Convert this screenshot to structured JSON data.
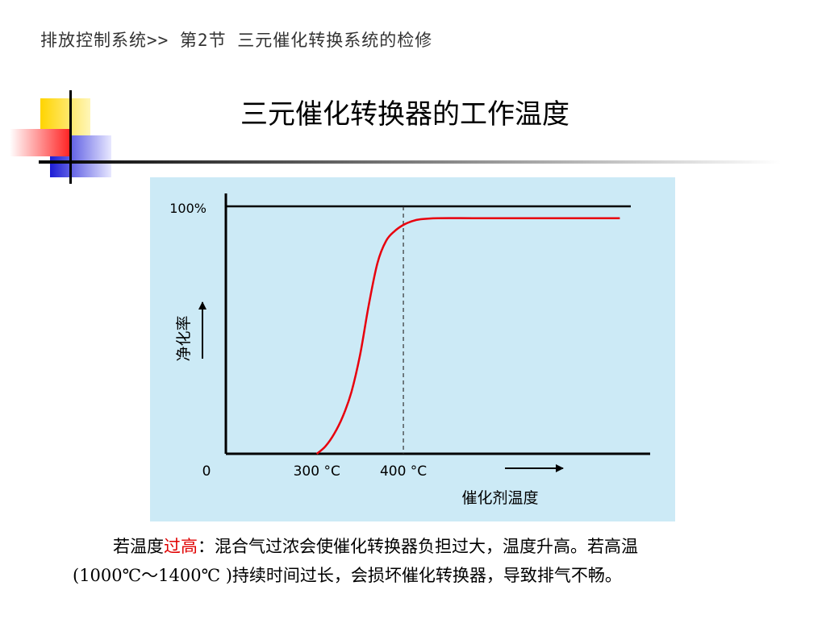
{
  "breadcrumb": "排放控制系统>> 第2节 三元催化转换系统的检修",
  "title": "三元催化转换器的工作温度",
  "chart_data": {
    "type": "line",
    "xlabel": "催化剂温度",
    "ylabel": "净化率",
    "y_ticks": [
      "100%",
      "0"
    ],
    "x_ticks": [
      {
        "label": "300 °C",
        "value": 300
      },
      {
        "label": "400 °C",
        "value": 400
      }
    ],
    "xlim": [
      195,
      685
    ],
    "ylim": [
      0,
      100
    ],
    "reference_line": {
      "y": 100
    },
    "marker_line": {
      "x": 400
    },
    "series": [
      {
        "color": "#e8000d",
        "x": [
          300,
          310,
          320,
          330,
          340,
          350,
          360,
          370,
          380,
          390,
          400,
          410,
          420,
          440,
          480,
          520,
          560,
          600,
          640,
          650
        ],
        "y": [
          0,
          3,
          8,
          15,
          25,
          40,
          60,
          77,
          86,
          90,
          92.5,
          94,
          94.8,
          95.2,
          95.2,
          95.2,
          95.2,
          95.2,
          95.2,
          95.2
        ]
      }
    ],
    "colors": {
      "panel": "#cceaf6",
      "axis": "#000000",
      "curve": "#e8000d"
    }
  },
  "description": {
    "line1_pre": "若温度",
    "line1_highlight": "过高",
    "line1_post": "：混合气过浓会使催化转换器负担过大，温度升高。若高温",
    "line2": "(1000℃～1400℃ )持续时间过长，会损坏催化转换器，导致排气不畅。"
  }
}
